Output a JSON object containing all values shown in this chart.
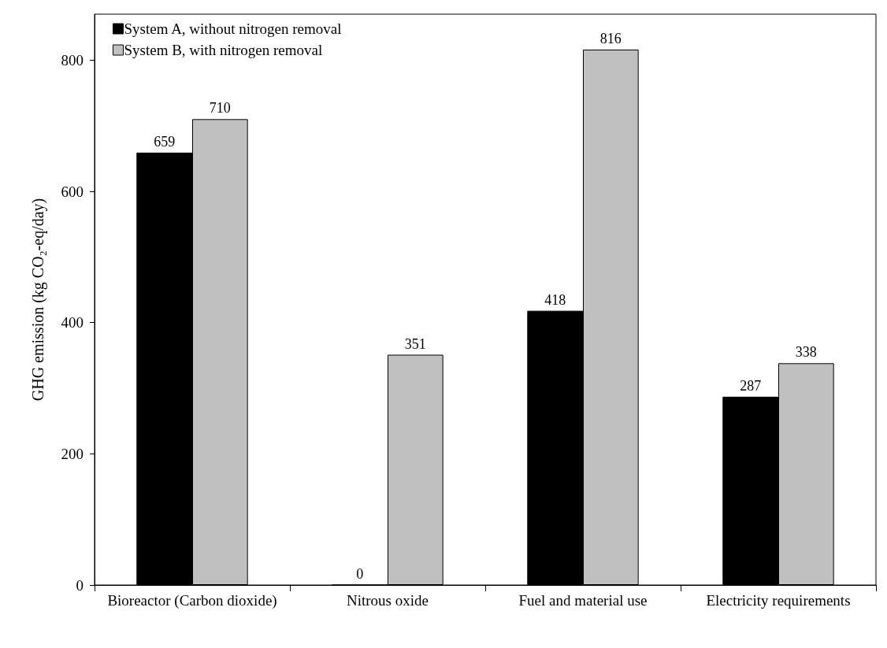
{
  "chart_data": {
    "type": "bar",
    "ylabel": "GHG emission (kg CO₂-eq/day)",
    "categories": [
      "Bioreactor (Carbon dioxide)",
      "Nitrous oxide",
      "Fuel and material use",
      "Electricity requirements"
    ],
    "series": [
      {
        "name": "System A, without nitrogen removal",
        "color": "#000000",
        "values": [
          659,
          0,
          418,
          287
        ]
      },
      {
        "name": "System B, with nitrogen removal",
        "color": "#c0c0c0",
        "values": [
          710,
          351,
          816,
          338
        ]
      }
    ],
    "ylim": [
      0,
      870
    ],
    "yticks": [
      0,
      200,
      400,
      600,
      800
    ],
    "data_labels": true,
    "legend": "top left",
    "grid": false
  }
}
